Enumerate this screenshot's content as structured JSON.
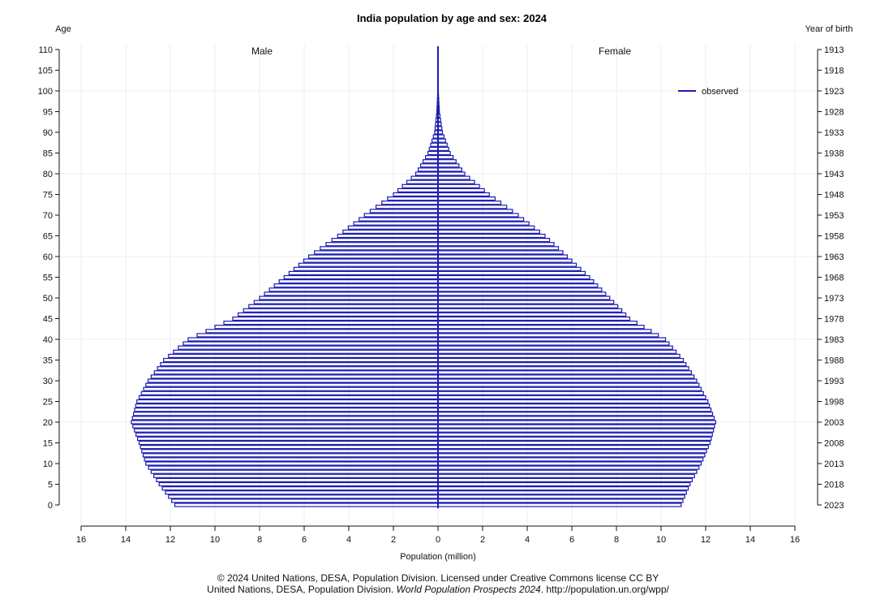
{
  "chart_data": {
    "type": "bar",
    "title": "India population by age and sex: 2024",
    "left_axis_label": "Age",
    "right_axis_label": "Year of birth",
    "xlabel": "Population (million)",
    "male_label": "Male",
    "female_label": "Female",
    "legend": {
      "label": "observed",
      "color": "#1c1cb0",
      "placement": "top-right"
    },
    "bar_color": "#1c1cb0",
    "xlim": [
      -16,
      16
    ],
    "ylim": [
      0,
      110
    ],
    "x_ticks": [
      16,
      14,
      12,
      10,
      8,
      6,
      4,
      2,
      0,
      2,
      4,
      6,
      8,
      10,
      12,
      14,
      16
    ],
    "age_ticks": [
      0,
      5,
      10,
      15,
      20,
      25,
      30,
      35,
      40,
      45,
      50,
      55,
      60,
      65,
      70,
      75,
      80,
      85,
      90,
      95,
      100,
      105,
      110
    ],
    "birth_year_ticks": [
      2023,
      2018,
      2013,
      2008,
      2003,
      1998,
      1993,
      1988,
      1983,
      1978,
      1973,
      1968,
      1963,
      1958,
      1953,
      1948,
      1943,
      1938,
      1933,
      1928,
      1923,
      1918,
      1913
    ],
    "ages": [
      0,
      5,
      10,
      15,
      20,
      25,
      30,
      35,
      40,
      45,
      50,
      55,
      60,
      65,
      70,
      75,
      80,
      85,
      90,
      95,
      100,
      105,
      110
    ],
    "male": [
      11.8,
      12.5,
      13.1,
      13.4,
      13.75,
      13.5,
      13.0,
      12.3,
      11.2,
      9.2,
      8.0,
      6.9,
      5.8,
      4.5,
      3.3,
      2.0,
      1.0,
      0.45,
      0.15,
      0.05,
      0.01,
      0.005,
      0.002
    ],
    "female": [
      10.9,
      11.3,
      11.8,
      12.2,
      12.45,
      12.1,
      11.6,
      11.0,
      10.2,
      8.6,
      7.7,
      6.8,
      5.8,
      4.8,
      3.6,
      2.3,
      1.2,
      0.55,
      0.2,
      0.06,
      0.015,
      0.006,
      0.002
    ]
  },
  "footer": {
    "line1": "© 2024 United Nations, DESA, Population Division. Licensed under Creative Commons license CC BY",
    "line2_start": "United Nations, DESA, Population Division. ",
    "line2_italic": "World Population Prospects 2024",
    "line2_end": ". http://population.un.org/wpp/"
  }
}
